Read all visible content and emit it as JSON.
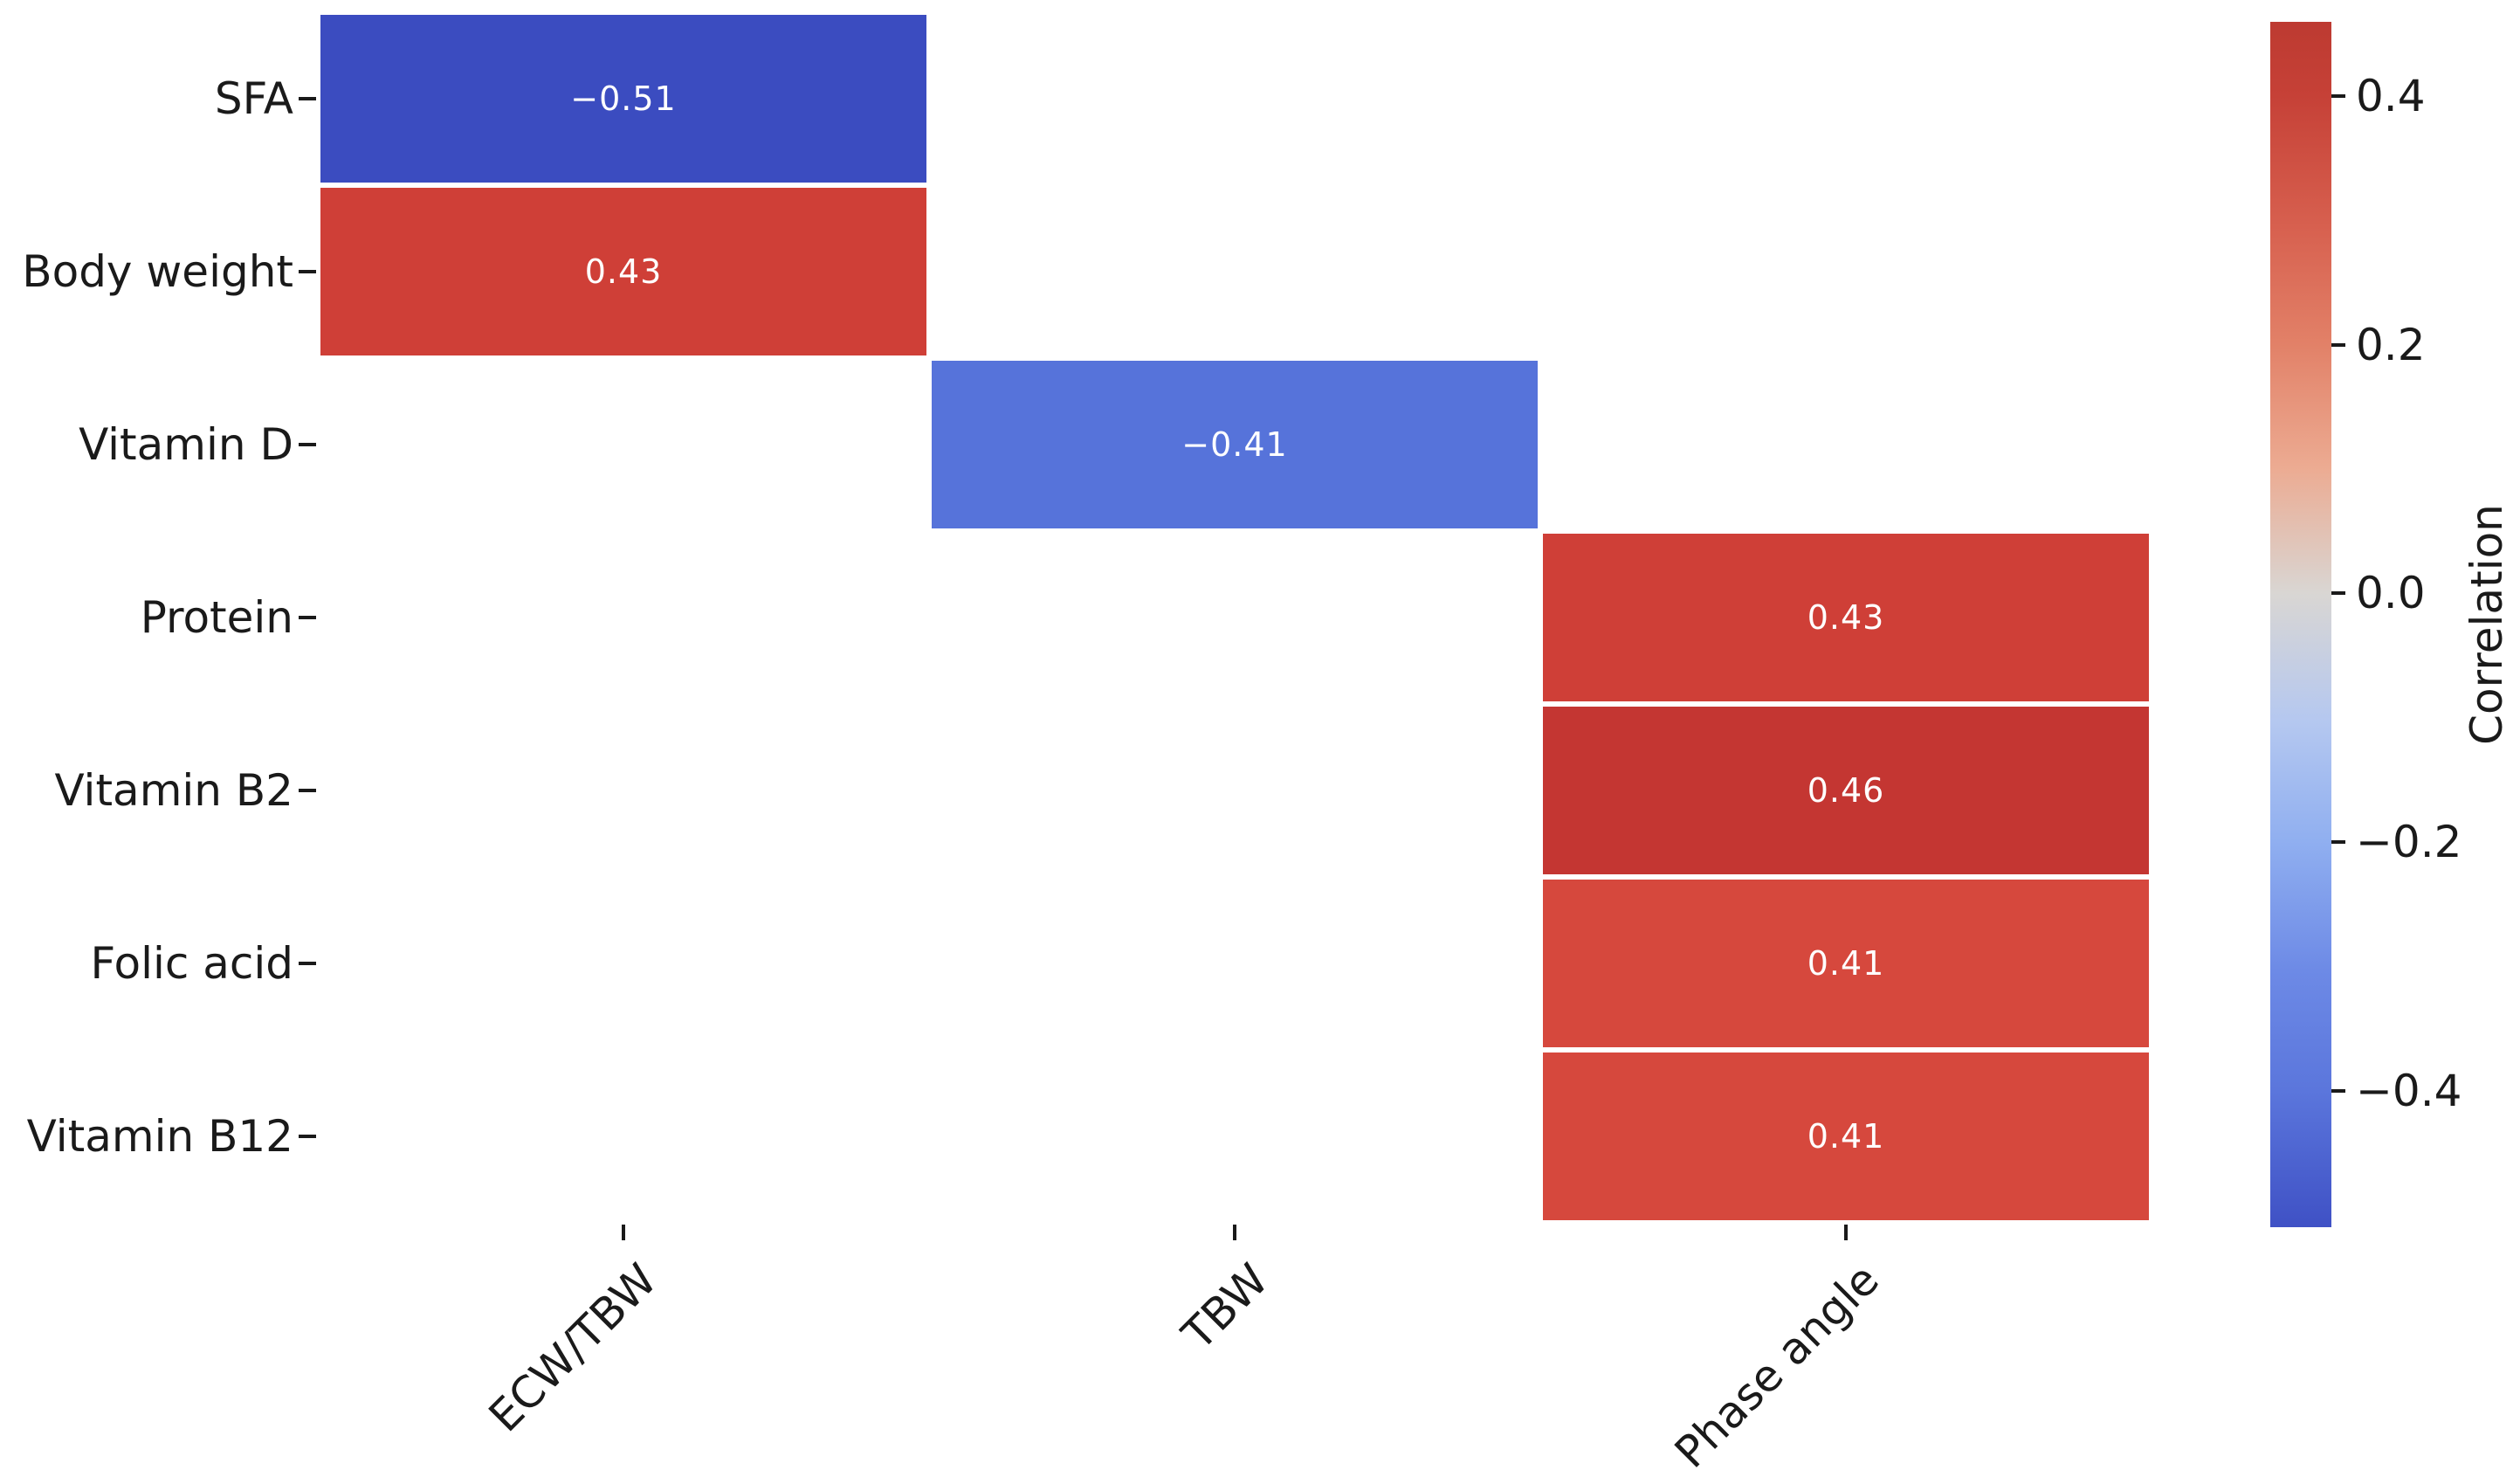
{
  "chart_data": {
    "type": "heatmap",
    "title": "",
    "rows": [
      "SFA",
      "Body weight",
      "Vitamin D",
      "Protein",
      "Vitamin B2",
      "Folic acid",
      "Vitamin B12"
    ],
    "columns": [
      "ECW/TBW",
      "TBW",
      "Phase angle"
    ],
    "cells": [
      {
        "row": "SFA",
        "col": "ECW/TBW",
        "value": -0.51,
        "label": "−0.51",
        "color": "#3b4cc0",
        "text_color": "#ffffff"
      },
      {
        "row": "Body weight",
        "col": "ECW/TBW",
        "value": 0.43,
        "label": "0.43",
        "color": "#cf3f37",
        "text_color": "#ffffff"
      },
      {
        "row": "Vitamin D",
        "col": "TBW",
        "value": -0.41,
        "label": "−0.41",
        "color": "#5673da",
        "text_color": "#ffffff"
      },
      {
        "row": "Protein",
        "col": "Phase angle",
        "value": 0.43,
        "label": "0.43",
        "color": "#cf3f37",
        "text_color": "#ffffff"
      },
      {
        "row": "Vitamin B2",
        "col": "Phase angle",
        "value": 0.46,
        "label": "0.46",
        "color": "#c43632",
        "text_color": "#ffffff"
      },
      {
        "row": "Folic acid",
        "col": "Phase angle",
        "value": 0.41,
        "label": "0.41",
        "color": "#d6483d",
        "text_color": "#ffffff"
      },
      {
        "row": "Vitamin B12",
        "col": "Phase angle",
        "value": 0.41,
        "label": "0.41",
        "color": "#d6483d",
        "text_color": "#ffffff"
      }
    ],
    "empty_cell_color": "#ffffff",
    "grid_line_color": "#ffffff",
    "colorbar": {
      "label": "Correlation",
      "vmin": -0.51,
      "vmax": 0.46,
      "ticks": [
        {
          "value": 0.4,
          "label": "0.4"
        },
        {
          "value": 0.2,
          "label": "0.2"
        },
        {
          "value": 0.0,
          "label": "0.0"
        },
        {
          "value": -0.2,
          "label": "−0.2"
        },
        {
          "value": -0.4,
          "label": "−0.4"
        }
      ],
      "gradient_stops": [
        {
          "pos": 0.0,
          "color": "#bd3a31"
        },
        {
          "pos": 0.062,
          "color": "#c64137"
        },
        {
          "pos": 0.17,
          "color": "#d7604f"
        },
        {
          "pos": 0.268,
          "color": "#e28168"
        },
        {
          "pos": 0.37,
          "color": "#ecab92"
        },
        {
          "pos": 0.474,
          "color": "#d9d6d3"
        },
        {
          "pos": 0.58,
          "color": "#b5c8f0"
        },
        {
          "pos": 0.68,
          "color": "#90aff0"
        },
        {
          "pos": 0.787,
          "color": "#6d8ae6"
        },
        {
          "pos": 0.887,
          "color": "#5b76dc"
        },
        {
          "pos": 1.0,
          "color": "#3f51c5"
        }
      ]
    },
    "legend_position": "right",
    "xlabel": "",
    "ylabel": "",
    "x_tick_rotation_deg": 45
  }
}
